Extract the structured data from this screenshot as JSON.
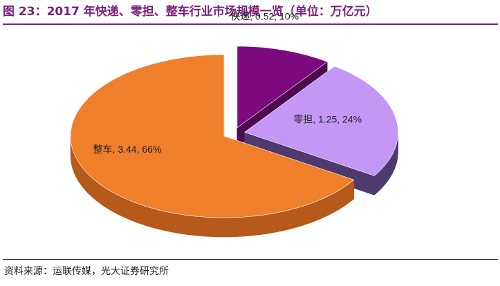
{
  "figure_title": "图 23：2017 年快递、零担、整车行业市场规模一览（单位：万亿元）",
  "source_note": "资料来源：运联传媒，光大证券研究所",
  "chart_data": {
    "type": "pie",
    "title": "2017 年快递、零担、整车行业市场规模一览（单位：万亿元）",
    "style": "3d-exploded",
    "slices": [
      {
        "name": "快递",
        "value": 0.52,
        "percent": 10,
        "label": "快递, 0.52, 10%",
        "color": "#7c0a7e",
        "side_color": "#4d0a4f"
      },
      {
        "name": "零担",
        "value": 1.25,
        "percent": 24,
        "label": "零担, 1.25, 24%",
        "color": "#c497f7",
        "side_color": "#4e3a6f"
      },
      {
        "name": "整车",
        "value": 3.44,
        "percent": 66,
        "label": "整车, 3.44, 66%",
        "color": "#ef7f2b",
        "side_color": "#b65a1c"
      }
    ]
  }
}
